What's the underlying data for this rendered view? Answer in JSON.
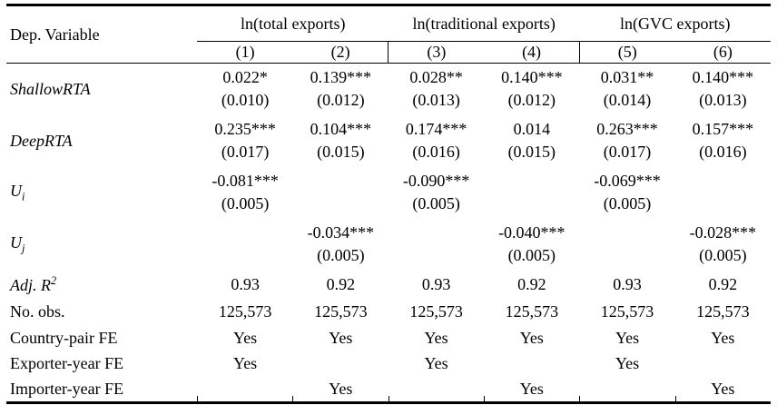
{
  "table": {
    "dep_variable_label": "Dep. Variable",
    "groups": [
      {
        "label": "ln(total exports)",
        "cols": [
          "(1)",
          "(2)"
        ]
      },
      {
        "label": "ln(traditional exports)",
        "cols": [
          "(3)",
          "(4)"
        ]
      },
      {
        "label": "ln(GVC exports)",
        "cols": [
          "(5)",
          "(6)"
        ]
      }
    ],
    "rows": [
      {
        "type": "coef",
        "label": {
          "text": "ShallowRTA",
          "italic": true
        },
        "cells": [
          {
            "coef": "0.022*",
            "se": "(0.010)"
          },
          {
            "coef": "0.139***",
            "se": "(0.012)"
          },
          {
            "coef": "0.028**",
            "se": "(0.013)"
          },
          {
            "coef": "0.140***",
            "se": "(0.012)"
          },
          {
            "coef": "0.031**",
            "se": "(0.014)"
          },
          {
            "coef": "0.140***",
            "se": "(0.013)"
          }
        ]
      },
      {
        "type": "coef",
        "label": {
          "text": "DeepRTA",
          "italic": true
        },
        "cells": [
          {
            "coef": "0.235***",
            "se": "(0.017)"
          },
          {
            "coef": "0.104***",
            "se": "(0.015)"
          },
          {
            "coef": "0.174***",
            "se": "(0.016)"
          },
          {
            "coef": "0.014",
            "se": "(0.015)"
          },
          {
            "coef": "0.263***",
            "se": "(0.017)"
          },
          {
            "coef": "0.157***",
            "se": "(0.016)"
          }
        ]
      },
      {
        "type": "coef",
        "label": {
          "text": "U",
          "sub": "i",
          "italic": true
        },
        "cells": [
          {
            "coef": "-0.081***",
            "se": "(0.005)"
          },
          {},
          {
            "coef": "-0.090***",
            "se": "(0.005)"
          },
          {},
          {
            "coef": "-0.069***",
            "se": "(0.005)"
          },
          {}
        ]
      },
      {
        "type": "coef",
        "label": {
          "text": "U",
          "sub": "j",
          "italic": true
        },
        "cells": [
          {},
          {
            "coef": "-0.034***",
            "se": "(0.005)"
          },
          {},
          {
            "coef": "-0.040***",
            "se": "(0.005)"
          },
          {},
          {
            "coef": "-0.028***",
            "se": "(0.005)"
          }
        ]
      },
      {
        "type": "stat",
        "label": {
          "text": "Adj. R",
          "sup": "2",
          "italic": true
        },
        "cells": [
          {
            "text": "0.93"
          },
          {
            "text": "0.92"
          },
          {
            "text": "0.93"
          },
          {
            "text": "0.92"
          },
          {
            "text": "0.93"
          },
          {
            "text": "0.92"
          }
        ]
      },
      {
        "type": "stat",
        "label": {
          "text": "No. obs.",
          "italic": false
        },
        "cells": [
          {
            "text": "125,573"
          },
          {
            "text": "125,573"
          },
          {
            "text": "125,573"
          },
          {
            "text": "125,573"
          },
          {
            "text": "125,573"
          },
          {
            "text": "125,573"
          }
        ]
      },
      {
        "type": "fe",
        "label": {
          "text": "Country-pair FE",
          "italic": false
        },
        "cells": [
          {
            "text": "Yes"
          },
          {
            "text": "Yes"
          },
          {
            "text": "Yes"
          },
          {
            "text": "Yes"
          },
          {
            "text": "Yes"
          },
          {
            "text": "Yes"
          }
        ]
      },
      {
        "type": "fe",
        "label": {
          "text": "Exporter-year FE",
          "italic": false
        },
        "cells": [
          {
            "text": "Yes"
          },
          {},
          {
            "text": "Yes"
          },
          {},
          {
            "text": "Yes"
          },
          {}
        ]
      },
      {
        "type": "fe",
        "label": {
          "text": "Importer-year FE",
          "italic": false
        },
        "cells": [
          {},
          {
            "text": "Yes"
          },
          {},
          {
            "text": "Yes"
          },
          {},
          {
            "text": "Yes"
          }
        ]
      }
    ]
  }
}
